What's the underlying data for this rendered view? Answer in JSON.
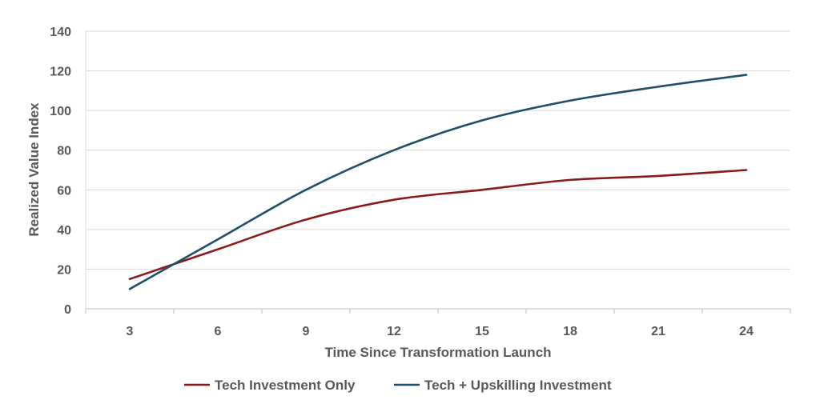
{
  "chart_data": {
    "type": "line",
    "title": "",
    "xlabel": "Time Since Transformation Launch",
    "ylabel": "Realized Value Index",
    "x": [
      3,
      6,
      9,
      12,
      15,
      18,
      21,
      24
    ],
    "x_tick_labels": [
      "3",
      "6",
      "9",
      "12",
      "15",
      "18",
      "21",
      "24"
    ],
    "ylim": [
      0,
      140
    ],
    "y_ticks": [
      0,
      20,
      40,
      60,
      80,
      100,
      120,
      140
    ],
    "grid": "horizontal",
    "legend_position": "bottom",
    "series": [
      {
        "name": "Tech Investment Only",
        "color": "#8b1a1a",
        "values": [
          15,
          30,
          45,
          55,
          60,
          65,
          67,
          70
        ]
      },
      {
        "name": "Tech + Upskilling Investment",
        "color": "#1f4e6b",
        "values": [
          10,
          35,
          60,
          80,
          95,
          105,
          112,
          118
        ]
      }
    ]
  }
}
